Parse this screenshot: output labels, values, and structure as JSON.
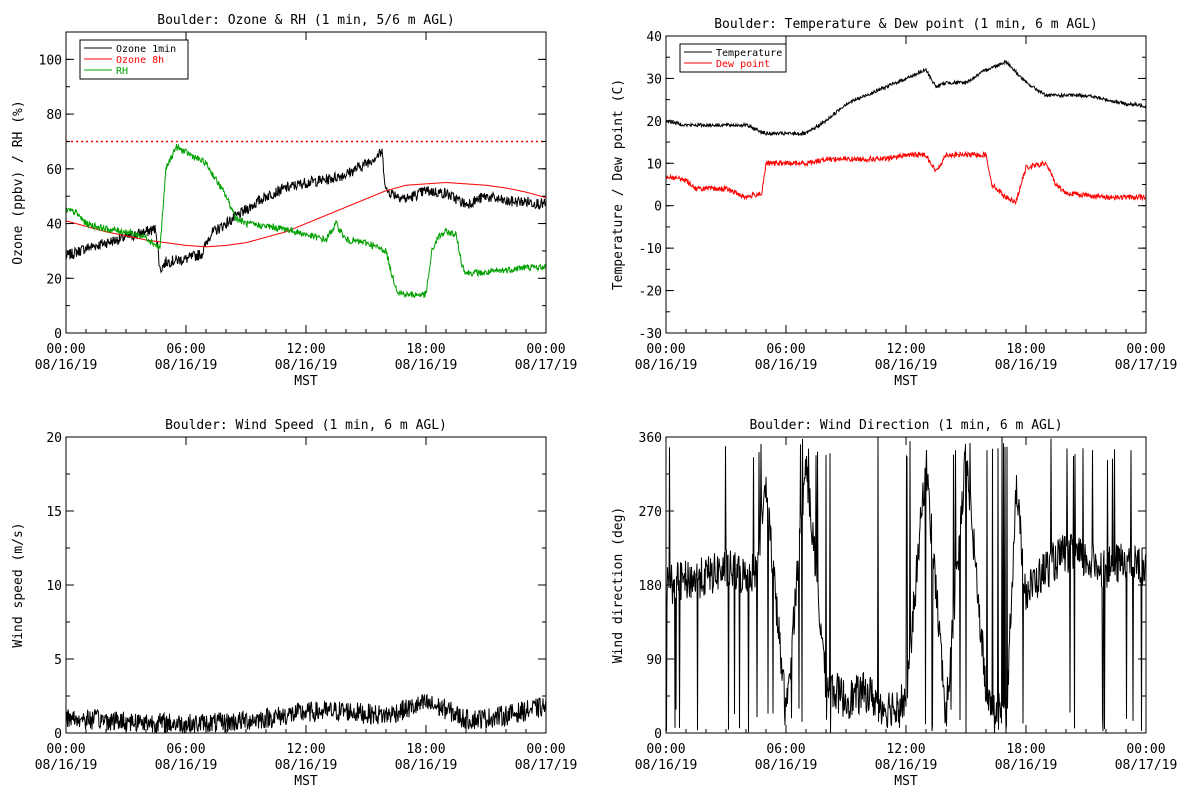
{
  "chart_data": [
    {
      "id": "ozone_rh",
      "type": "line",
      "title": "Boulder: Ozone & RH (1 min, 5/6 m AGL)",
      "xlabel": "MST",
      "ylabel": "Ozone (ppbv) / RH (%)",
      "ylim": [
        0,
        110
      ],
      "yticks": [
        0,
        20,
        40,
        60,
        80,
        100
      ],
      "xlim_hours": [
        0,
        24
      ],
      "xticks": [
        {
          "h": 0,
          "time": "00:00",
          "date": "08/16/19"
        },
        {
          "h": 6,
          "time": "06:00",
          "date": "08/16/19"
        },
        {
          "h": 12,
          "time": "12:00",
          "date": "08/16/19"
        },
        {
          "h": 18,
          "time": "18:00",
          "date": "08/16/19"
        },
        {
          "h": 24,
          "time": "00:00",
          "date": "08/17/19"
        }
      ],
      "legend": "top-left",
      "reference_line": {
        "y": 70,
        "color": "#ff0000",
        "style": "dotted"
      },
      "series": [
        {
          "name": "Ozone 1min",
          "color": "#000000",
          "noise": 2.0,
          "points": [
            [
              0,
              28
            ],
            [
              1,
              31
            ],
            [
              2,
              33
            ],
            [
              3,
              35
            ],
            [
              4,
              37
            ],
            [
              4.5,
              38
            ],
            [
              4.7,
              23
            ],
            [
              5,
              26
            ],
            [
              6,
              27
            ],
            [
              6.8,
              29
            ],
            [
              7.2,
              36
            ],
            [
              8,
              40
            ],
            [
              9,
              45
            ],
            [
              10,
              50
            ],
            [
              11,
              53
            ],
            [
              12,
              55
            ],
            [
              13,
              56
            ],
            [
              14,
              58
            ],
            [
              15,
              62
            ],
            [
              15.8,
              66
            ],
            [
              16,
              52
            ],
            [
              17,
              49
            ],
            [
              18,
              52
            ],
            [
              19,
              51
            ],
            [
              20,
              47
            ],
            [
              21,
              50
            ],
            [
              22,
              48
            ],
            [
              23,
              48
            ],
            [
              24,
              47
            ]
          ]
        },
        {
          "name": "Ozone 8h",
          "color": "#ff0000",
          "noise": 0,
          "points": [
            [
              0,
              41
            ],
            [
              1,
              39
            ],
            [
              2,
              37
            ],
            [
              3,
              35.5
            ],
            [
              4,
              34
            ],
            [
              5,
              33
            ],
            [
              6,
              32
            ],
            [
              7,
              31.5
            ],
            [
              8,
              32
            ],
            [
              9,
              33
            ],
            [
              10,
              35
            ],
            [
              11,
              37
            ],
            [
              12,
              40
            ],
            [
              13,
              43
            ],
            [
              14,
              46
            ],
            [
              15,
              49
            ],
            [
              16,
              52
            ],
            [
              17,
              54
            ],
            [
              18,
              54.5
            ],
            [
              19,
              55
            ],
            [
              20,
              54.5
            ],
            [
              21,
              54
            ],
            [
              22,
              53
            ],
            [
              23,
              51.5
            ],
            [
              24,
              49.5
            ]
          ]
        },
        {
          "name": "RH",
          "color": "#00a000",
          "noise": 1.2,
          "points": [
            [
              0,
              45
            ],
            [
              0.5,
              44
            ],
            [
              1,
              40
            ],
            [
              2,
              38
            ],
            [
              3,
              37
            ],
            [
              4,
              35
            ],
            [
              4.7,
              31
            ],
            [
              5,
              60
            ],
            [
              5.5,
              68
            ],
            [
              6,
              66
            ],
            [
              7,
              62
            ],
            [
              8,
              50
            ],
            [
              8.5,
              42
            ],
            [
              9,
              40
            ],
            [
              10,
              39
            ],
            [
              11,
              38
            ],
            [
              12,
              36
            ],
            [
              13,
              34
            ],
            [
              13.5,
              40
            ],
            [
              14,
              34
            ],
            [
              15,
              33
            ],
            [
              16,
              30
            ],
            [
              16.3,
              21
            ],
            [
              16.6,
              15
            ],
            [
              17,
              14
            ],
            [
              18,
              14
            ],
            [
              18.3,
              30
            ],
            [
              18.6,
              35
            ],
            [
              19,
              37
            ],
            [
              19.5,
              36
            ],
            [
              19.8,
              25
            ],
            [
              20,
              22
            ],
            [
              21,
              22
            ],
            [
              22,
              23
            ],
            [
              23,
              24
            ],
            [
              24,
              24
            ]
          ]
        }
      ]
    },
    {
      "id": "temp_dew",
      "type": "line",
      "title": "Boulder: Temperature & Dew point (1 min, 6 m AGL)",
      "xlabel": "MST",
      "ylabel": "Temperature / Dew point (C)",
      "ylim": [
        -30,
        40
      ],
      "yticks": [
        -30,
        -20,
        -10,
        0,
        10,
        20,
        30,
        40
      ],
      "xlim_hours": [
        0,
        24
      ],
      "xticks": [
        {
          "h": 0,
          "time": "00:00",
          "date": "08/16/19"
        },
        {
          "h": 6,
          "time": "06:00",
          "date": "08/16/19"
        },
        {
          "h": 12,
          "time": "12:00",
          "date": "08/16/19"
        },
        {
          "h": 18,
          "time": "18:00",
          "date": "08/16/19"
        },
        {
          "h": 24,
          "time": "00:00",
          "date": "08/17/19"
        }
      ],
      "legend": "top-left",
      "series": [
        {
          "name": "Temperature",
          "color": "#000000",
          "noise": 0.4,
          "points": [
            [
              0,
              20
            ],
            [
              1,
              19
            ],
            [
              2,
              19
            ],
            [
              3,
              19
            ],
            [
              4,
              19
            ],
            [
              5,
              17
            ],
            [
              6,
              17
            ],
            [
              7,
              17
            ],
            [
              8,
              20
            ],
            [
              9,
              24
            ],
            [
              10,
              26
            ],
            [
              11,
              28
            ],
            [
              12,
              30
            ],
            [
              13,
              32
            ],
            [
              13.5,
              28
            ],
            [
              14,
              29
            ],
            [
              15,
              29
            ],
            [
              16,
              32
            ],
            [
              17,
              34
            ],
            [
              18,
              29
            ],
            [
              19,
              26
            ],
            [
              20,
              26
            ],
            [
              21,
              26
            ],
            [
              22,
              25
            ],
            [
              23,
              24
            ],
            [
              24,
              23.5
            ]
          ]
        },
        {
          "name": "Dew point",
          "color": "#ff0000",
          "noise": 0.6,
          "points": [
            [
              0,
              7
            ],
            [
              1,
              6
            ],
            [
              1.5,
              4
            ],
            [
              2,
              4
            ],
            [
              3,
              4
            ],
            [
              4,
              2
            ],
            [
              4.8,
              3
            ],
            [
              5,
              10
            ],
            [
              6,
              10
            ],
            [
              7,
              10
            ],
            [
              8,
              11
            ],
            [
              9,
              11
            ],
            [
              10,
              11
            ],
            [
              11,
              11
            ],
            [
              12,
              12
            ],
            [
              13,
              12
            ],
            [
              13.5,
              8
            ],
            [
              14,
              12
            ],
            [
              15,
              12
            ],
            [
              16,
              12
            ],
            [
              16.3,
              5
            ],
            [
              17,
              2
            ],
            [
              17.5,
              1
            ],
            [
              18,
              9
            ],
            [
              19,
              10
            ],
            [
              19.5,
              5
            ],
            [
              20,
              3
            ],
            [
              22,
              2
            ],
            [
              24,
              2
            ]
          ]
        }
      ]
    },
    {
      "id": "wind_speed",
      "type": "line",
      "title": "Boulder: Wind Speed (1 min, 6 m AGL)",
      "xlabel": "MST",
      "ylabel": "Wind speed (m/s)",
      "ylim": [
        0,
        20
      ],
      "yticks": [
        0,
        5,
        10,
        15,
        20
      ],
      "xlim_hours": [
        0,
        24
      ],
      "xticks": [
        {
          "h": 0,
          "time": "00:00",
          "date": "08/16/19"
        },
        {
          "h": 6,
          "time": "06:00",
          "date": "08/16/19"
        },
        {
          "h": 12,
          "time": "12:00",
          "date": "08/16/19"
        },
        {
          "h": 18,
          "time": "18:00",
          "date": "08/16/19"
        },
        {
          "h": 24,
          "time": "00:00",
          "date": "08/17/19"
        }
      ],
      "legend": "none",
      "series": [
        {
          "name": "Wind speed",
          "color": "#000000",
          "noise": 0.7,
          "floor": 0,
          "points": [
            [
              0,
              1.0
            ],
            [
              3,
              0.8
            ],
            [
              6,
              0.6
            ],
            [
              8,
              0.7
            ],
            [
              10,
              1.0
            ],
            [
              12,
              1.4
            ],
            [
              14,
              1.5
            ],
            [
              15,
              1.3
            ],
            [
              16,
              1.2
            ],
            [
              17,
              1.6
            ],
            [
              18,
              2.0
            ],
            [
              19,
              1.6
            ],
            [
              20,
              0.9
            ],
            [
              21,
              1.0
            ],
            [
              22,
              1.2
            ],
            [
              23,
              1.5
            ],
            [
              24,
              1.8
            ]
          ]
        }
      ]
    },
    {
      "id": "wind_dir",
      "type": "line",
      "title": "Boulder: Wind Direction (1 min, 6 m AGL)",
      "xlabel": "MST",
      "ylabel": "Wind direction (deg)",
      "ylim": [
        0,
        360
      ],
      "yticks": [
        0,
        90,
        180,
        270,
        360
      ],
      "xlim_hours": [
        0,
        24
      ],
      "xticks": [
        {
          "h": 0,
          "time": "00:00",
          "date": "08/16/19"
        },
        {
          "h": 6,
          "time": "06:00",
          "date": "08/16/19"
        },
        {
          "h": 12,
          "time": "12:00",
          "date": "08/16/19"
        },
        {
          "h": 18,
          "time": "18:00",
          "date": "08/16/19"
        },
        {
          "h": 24,
          "time": "00:00",
          "date": "08/17/19"
        }
      ],
      "legend": "none",
      "series": [
        {
          "name": "Wind direction",
          "color": "#000000",
          "noise": 25,
          "wrap": 360,
          "points": [
            [
              0,
              180
            ],
            [
              2,
              190
            ],
            [
              3,
              200
            ],
            [
              4,
              190
            ],
            [
              4.5,
              200
            ],
            [
              5,
              300
            ],
            [
              6,
              20
            ],
            [
              7,
              330
            ],
            [
              8,
              60
            ],
            [
              9,
              40
            ],
            [
              10,
              50
            ],
            [
              11,
              30
            ],
            [
              12,
              40
            ],
            [
              13,
              330
            ],
            [
              14,
              20
            ],
            [
              15,
              340
            ],
            [
              16,
              50
            ],
            [
              17,
              10
            ],
            [
              17.5,
              300
            ],
            [
              18,
              170
            ],
            [
              19,
              200
            ],
            [
              20,
              220
            ],
            [
              21,
              210
            ],
            [
              22,
              200
            ],
            [
              23,
              210
            ],
            [
              24,
              200
            ]
          ]
        }
      ]
    }
  ]
}
